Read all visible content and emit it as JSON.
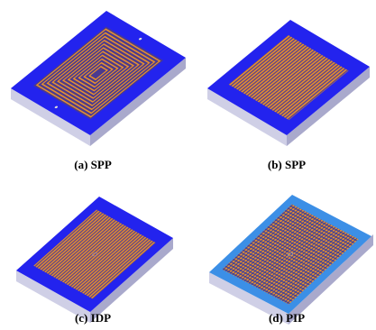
{
  "figure": {
    "panels": [
      {
        "label": "(a) SPP"
      },
      {
        "label": "(b) SPP"
      },
      {
        "label": "(c) IDP"
      },
      {
        "label": "(d) PIP"
      }
    ]
  }
}
